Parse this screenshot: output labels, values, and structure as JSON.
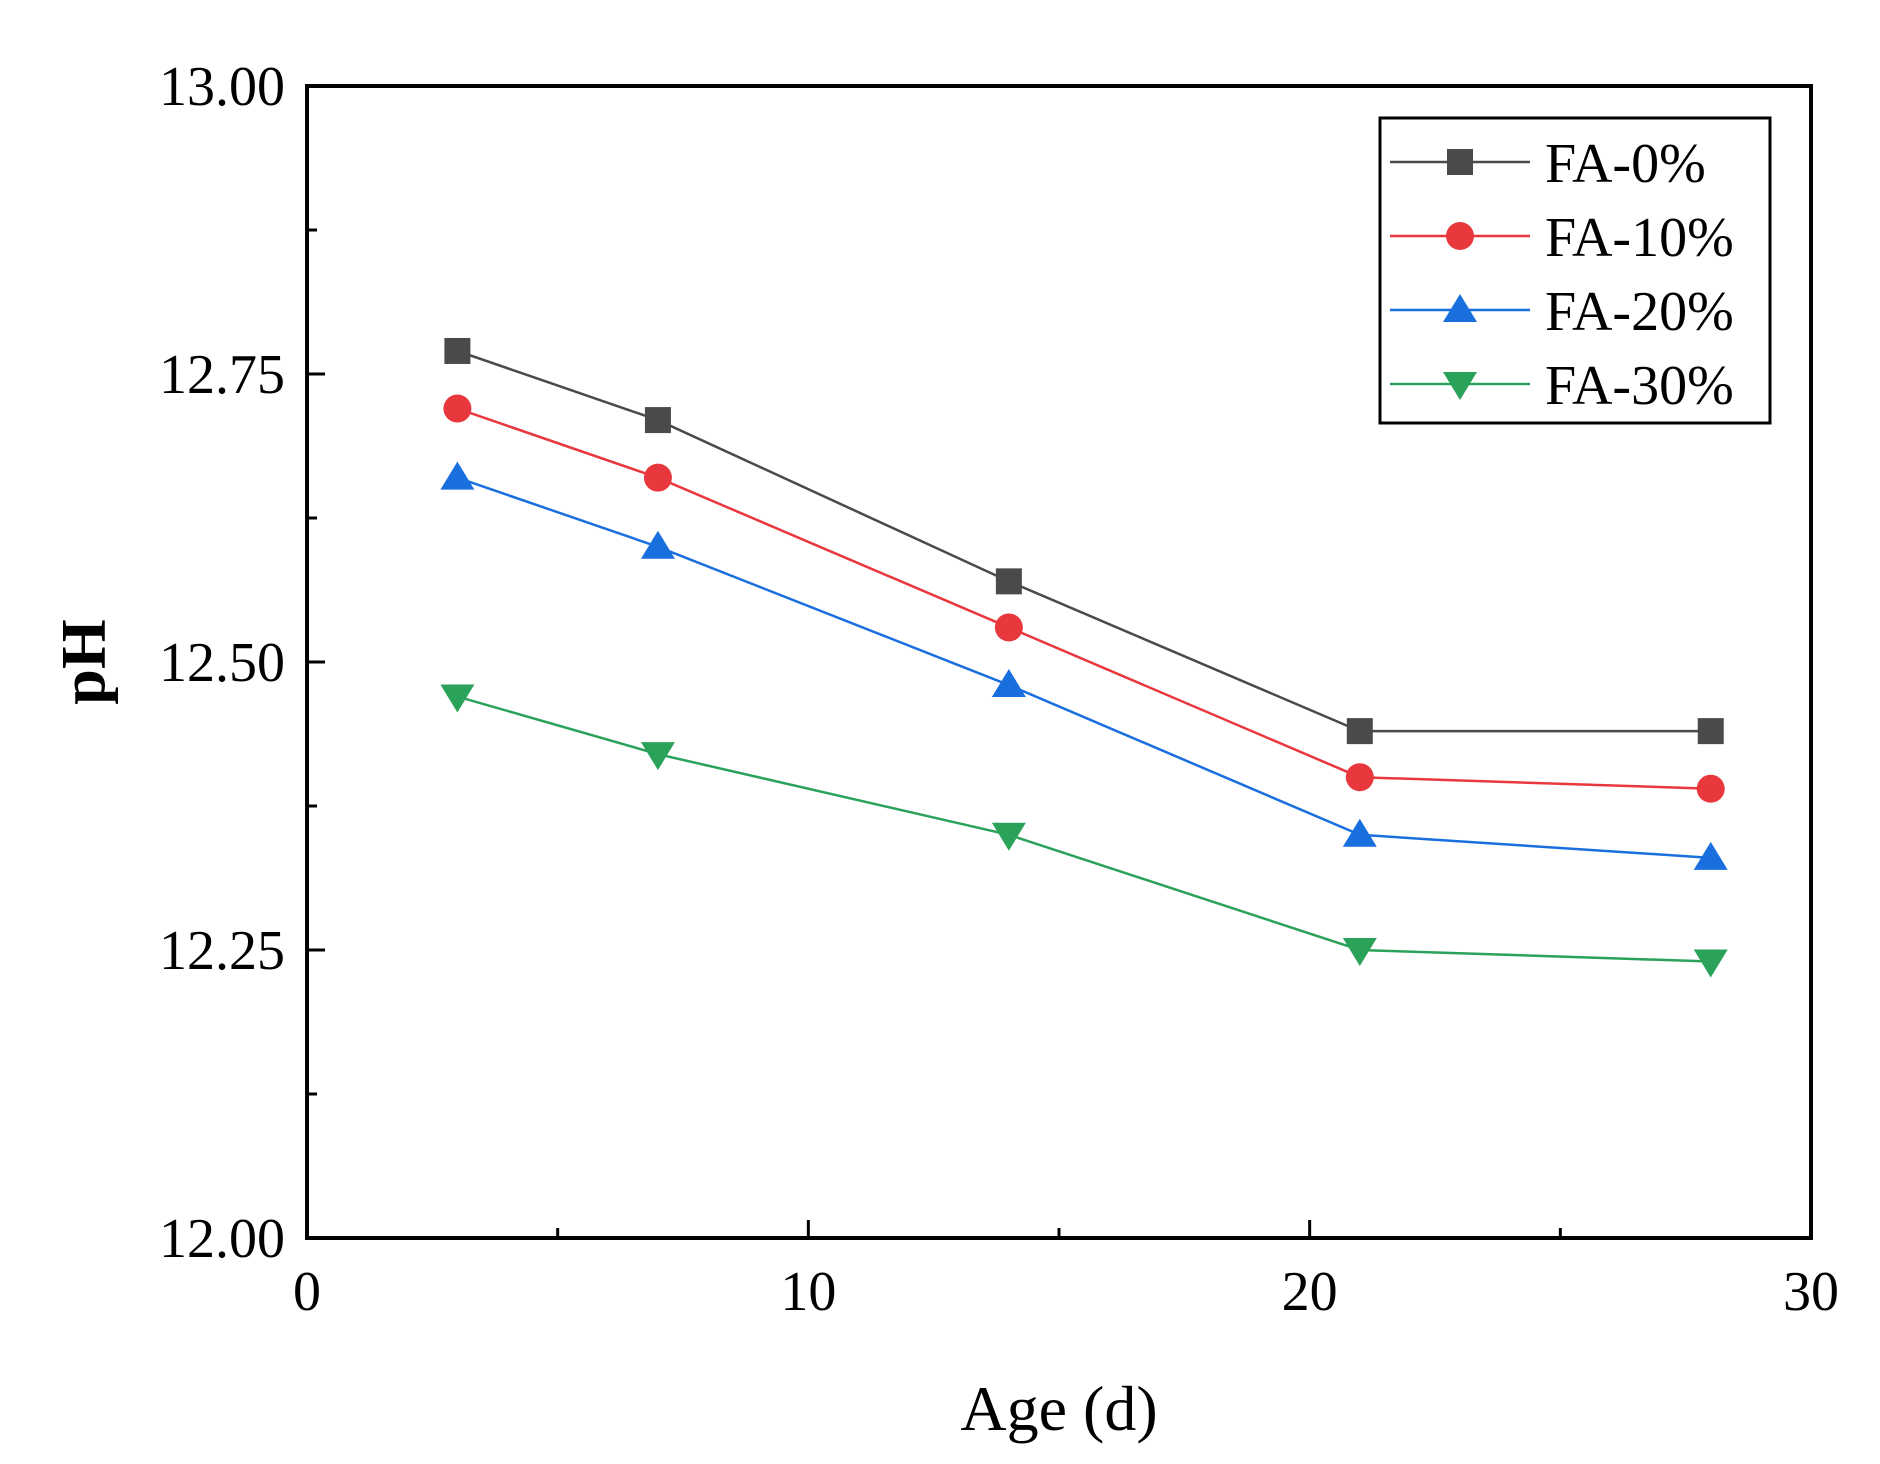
{
  "chart_data": {
    "type": "line",
    "title": "",
    "xlabel": "Age (d)",
    "ylabel": "pH",
    "xlim": [
      0,
      30
    ],
    "ylim": [
      12.0,
      13.0
    ],
    "x_ticks": [
      0,
      10,
      20,
      30
    ],
    "x_tick_labels": [
      "0",
      "10",
      "20",
      "30"
    ],
    "x_minor_ticks": [
      5,
      15,
      25
    ],
    "y_ticks": [
      12.0,
      12.25,
      12.5,
      12.75,
      13.0
    ],
    "y_tick_labels": [
      "12.00",
      "12.25",
      "12.50",
      "12.75",
      "13.00"
    ],
    "y_minor_ticks": [
      12.125,
      12.375,
      12.625,
      12.875
    ],
    "grid": false,
    "legend_position": "top-right",
    "x": [
      3,
      7,
      14,
      21,
      28
    ],
    "series": [
      {
        "name": "FA-0%",
        "color": "#4a4a4a",
        "marker": "square",
        "values": [
          12.77,
          12.71,
          12.57,
          12.44,
          12.44
        ]
      },
      {
        "name": "FA-10%",
        "color": "#e8383d",
        "marker": "circle",
        "values": [
          12.72,
          12.66,
          12.53,
          12.4,
          12.39
        ]
      },
      {
        "name": "FA-20%",
        "color": "#1a6fdf",
        "marker": "triangle-up",
        "values": [
          12.66,
          12.6,
          12.48,
          12.35,
          12.33
        ]
      },
      {
        "name": "FA-30%",
        "color": "#2ba25a",
        "marker": "triangle-down",
        "values": [
          12.47,
          12.42,
          12.35,
          12.25,
          12.24
        ]
      }
    ]
  }
}
